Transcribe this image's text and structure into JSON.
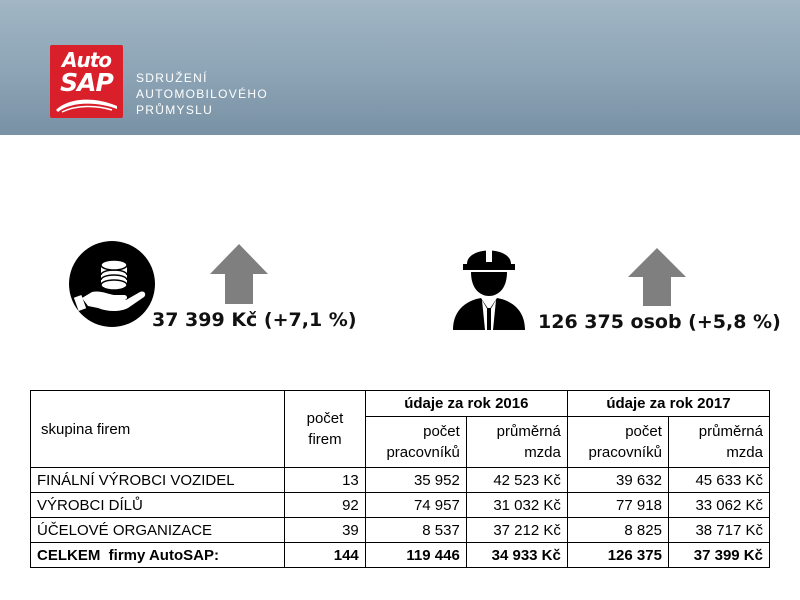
{
  "header": {
    "logo": {
      "line1": "Auto",
      "line2": "SAP"
    },
    "org_name": [
      "SDRUŽENÍ",
      "AUTOMOBILOVÉHO",
      "PRŮMYSLU"
    ]
  },
  "kpis": {
    "wage": {
      "icon": "coin-stack-hand-icon",
      "direction": "up",
      "text": "37 399 Kč (+7,1 %)"
    },
    "employees": {
      "icon": "construction-worker-icon",
      "direction": "up",
      "text": "126 375 osob (+5,8 %)"
    }
  },
  "table": {
    "headers": {
      "group": "skupina firem",
      "firm_count": [
        "počet",
        "firem"
      ],
      "year_2016": "údaje za rok 2016",
      "year_2017": "údaje za rok 2017",
      "employees": [
        "počet",
        "pracovníků"
      ],
      "avg_wage": [
        "průměrná",
        "mzda"
      ]
    },
    "rows": [
      {
        "group": "FINÁLNÍ VÝROBCI VOZIDEL",
        "firms": "13",
        "emp_2016": "35 952",
        "wage_2016": "42 523 Kč",
        "emp_2017": "39 632",
        "wage_2017": "45 633 Kč"
      },
      {
        "group": "VÝROBCI DÍLŮ",
        "firms": "92",
        "emp_2016": "74 957",
        "wage_2016": "31 032 Kč",
        "emp_2017": "77 918",
        "wage_2017": "33 062 Kč"
      },
      {
        "group": "ÚČELOVÉ ORGANIZACE",
        "firms": "39",
        "emp_2016": "8 537",
        "wage_2016": "37 212 Kč",
        "emp_2017": "8 825",
        "wage_2017": "38 717 Kč"
      }
    ],
    "total": {
      "group": "CELKEM  firmy AutoSAP:",
      "firms": "144",
      "emp_2016": "119 446",
      "wage_2016": "34 933 Kč",
      "emp_2017": "126 375",
      "wage_2017": "37 399 Kč"
    }
  },
  "colors": {
    "logo_red": "#d81f2a",
    "arrow_gray": "#7f7f7f",
    "header_blue": "#8ca4b5"
  }
}
